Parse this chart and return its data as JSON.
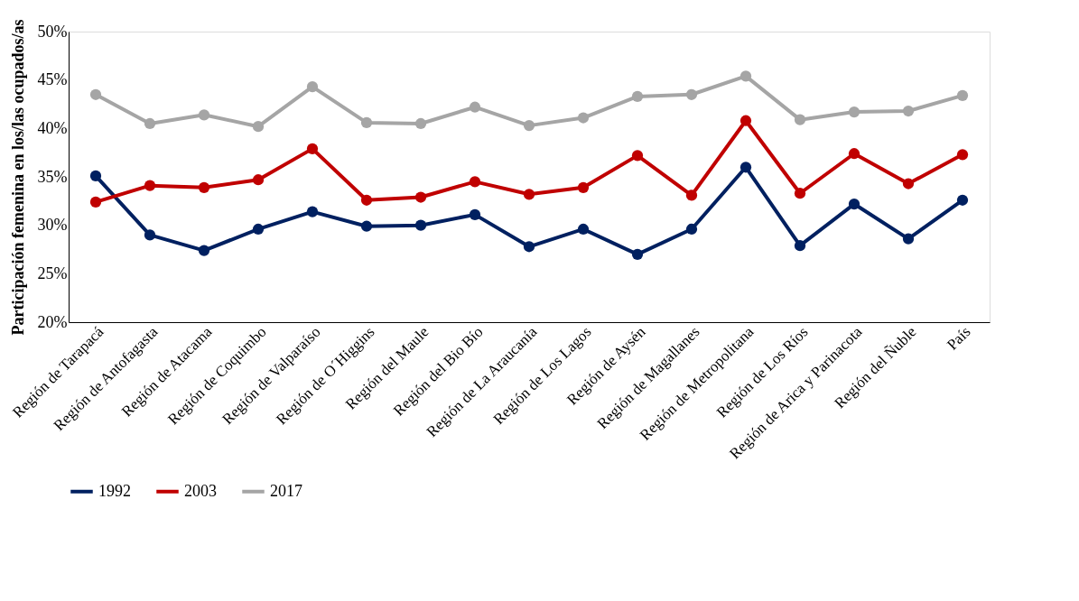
{
  "chart_data": {
    "type": "line",
    "ylabel": "Participación femenina en los/las ocupados/as",
    "categories": [
      "Región de Tarapacá",
      "Región de Antofagasta",
      "Región de Atacama",
      "Región de Coquimbo",
      "Región de Valparaíso",
      "Región de O´Higgins",
      "Región del Maule",
      "Región del Bio Bío",
      "Región de La Araucanía",
      "Región de Los Lagos",
      "Región de Aysén",
      "Región de Magallanes",
      "Región de Metropolitana",
      "Región de Los Ríos",
      "Región de Arica y Parinacota",
      "Región del Ñuble",
      "País"
    ],
    "series": [
      {
        "name": "1992",
        "color": "#002060",
        "values": [
          35.1,
          29.0,
          27.4,
          29.6,
          31.4,
          29.9,
          30.0,
          31.1,
          27.8,
          29.6,
          27.0,
          29.6,
          36.0,
          27.9,
          32.2,
          28.6,
          32.6
        ]
      },
      {
        "name": "2003",
        "color": "#c00000",
        "values": [
          32.4,
          34.1,
          33.9,
          34.7,
          37.9,
          32.6,
          32.9,
          34.5,
          33.2,
          33.9,
          37.2,
          33.1,
          40.8,
          33.3,
          37.4,
          34.3,
          37.3
        ]
      },
      {
        "name": "2017",
        "color": "#a5a5a5",
        "values": [
          43.5,
          40.5,
          41.4,
          40.2,
          44.3,
          40.6,
          40.5,
          42.2,
          40.3,
          41.1,
          43.3,
          43.5,
          45.4,
          40.9,
          41.7,
          41.8,
          43.4
        ]
      }
    ],
    "ylim": [
      20,
      50
    ],
    "yticks": [
      {
        "value": 20,
        "label": "20%"
      },
      {
        "value": 25,
        "label": "25%"
      },
      {
        "value": 30,
        "label": "30%"
      },
      {
        "value": 35,
        "label": "35%"
      },
      {
        "value": 40,
        "label": "40%"
      },
      {
        "value": 45,
        "label": "45%"
      },
      {
        "value": 50,
        "label": "50%"
      }
    ],
    "grid": false,
    "legend": "bottom",
    "marker": "circle",
    "line_style": "solid"
  }
}
